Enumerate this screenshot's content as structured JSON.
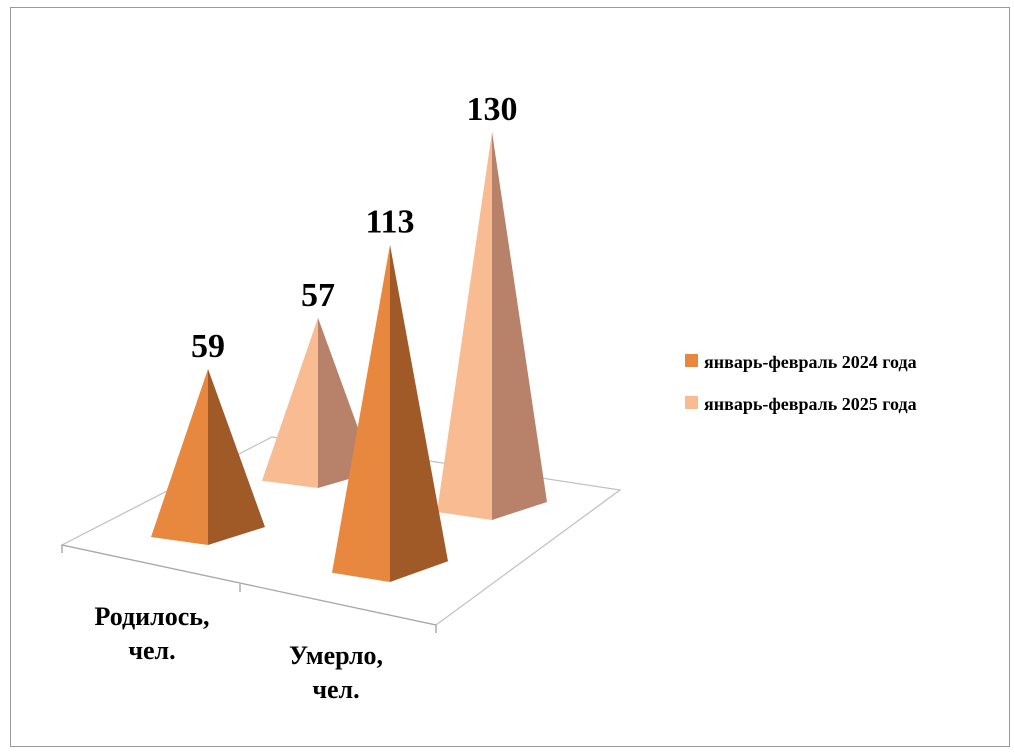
{
  "chart_data": {
    "type": "bar",
    "subtype": "3d-pyramid",
    "categories": [
      "Родилось, чел.",
      "Умерло, чел."
    ],
    "series": [
      {
        "name": "январь-февраль 2024 года",
        "values": [
          59,
          113
        ],
        "color": "#E8883F",
        "shade": "#A05A28"
      },
      {
        "name": "январь-февраль 2025 года",
        "values": [
          57,
          130
        ],
        "color": "#F9BB92",
        "shade": "#B8826A"
      }
    ],
    "category_lines": [
      [
        "Родилось,",
        "чел."
      ],
      [
        "Умерло,",
        "чел."
      ]
    ],
    "legend_position": "right",
    "grid": false,
    "data_labels": true
  }
}
